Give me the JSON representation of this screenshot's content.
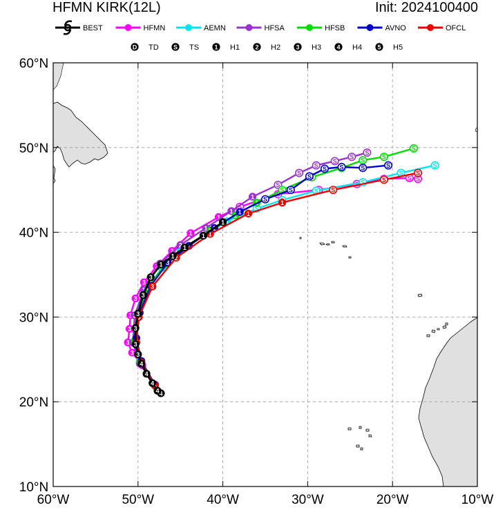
{
  "header": {
    "title_left": "HFMN KIRK(12L)",
    "title_right": "Init: 2024100400"
  },
  "colors": {
    "BEST": "#000000",
    "HFMN": "#ff00ff",
    "AEMN": "#00e5ee",
    "HFSA": "#9a32cd",
    "HFSB": "#00dd00",
    "AVNO": "#0000cd",
    "OFCL": "#ee0000",
    "land": "#e0e0e0",
    "grid": "#999999"
  },
  "legend": {
    "models": [
      {
        "name": "BEST",
        "icon": "hurricane-symbol-icon"
      },
      {
        "name": "HFMN",
        "icon": "line-dot-icon"
      },
      {
        "name": "AEMN",
        "icon": "line-dot-icon"
      },
      {
        "name": "HFSA",
        "icon": "line-dot-icon"
      },
      {
        "name": "HFSB",
        "icon": "line-dot-icon"
      },
      {
        "name": "AVNO",
        "icon": "line-dot-icon"
      },
      {
        "name": "OFCL",
        "icon": "line-dot-icon"
      }
    ],
    "intensity": [
      {
        "symbol": "D",
        "label": "TD"
      },
      {
        "symbol": "S",
        "label": "TS"
      },
      {
        "symbol": "1",
        "label": "H1"
      },
      {
        "symbol": "2",
        "label": "H2"
      },
      {
        "symbol": "3",
        "label": "H3"
      },
      {
        "symbol": "4",
        "label": "H4"
      },
      {
        "symbol": "5",
        "label": "H5"
      }
    ]
  },
  "chart_data": {
    "type": "line",
    "map_projection": "equirectangular",
    "xlim": [
      -60,
      -10
    ],
    "ylim": [
      10,
      60
    ],
    "xticks": [
      -60,
      -50,
      -40,
      -30,
      -20,
      -10
    ],
    "yticks": [
      10,
      20,
      30,
      40,
      50,
      60
    ],
    "xtick_labels": [
      "60°W",
      "50°W",
      "40°W",
      "30°W",
      "20°W",
      "10°W"
    ],
    "ytick_labels": [
      "10°N",
      "20°N",
      "30°N",
      "40°N",
      "50°N",
      "60°N"
    ],
    "grid": true,
    "legend_position": "top",
    "series": [
      {
        "name": "BEST",
        "points": [
          {
            "lon": -47.3,
            "lat": 21.0,
            "s": "4"
          },
          {
            "lon": -47.7,
            "lat": 21.3,
            "s": "4"
          },
          {
            "lon": -48.3,
            "lat": 22.2,
            "s": "4"
          },
          {
            "lon": -49.0,
            "lat": 23.3,
            "s": "4"
          },
          {
            "lon": -49.6,
            "lat": 24.5,
            "s": "4"
          },
          {
            "lon": -50.0,
            "lat": 25.6,
            "s": "3"
          },
          {
            "lon": -50.3,
            "lat": 26.8,
            "s": "3"
          },
          {
            "lon": -50.3,
            "lat": 28.7,
            "s": "3"
          },
          {
            "lon": -50.0,
            "lat": 30.4,
            "s": "3"
          },
          {
            "lon": -49.4,
            "lat": 32.6,
            "s": "3"
          },
          {
            "lon": -48.5,
            "lat": 34.7,
            "s": "3"
          },
          {
            "lon": -47.3,
            "lat": 36.2,
            "s": "1"
          },
          {
            "lon": -45.9,
            "lat": 37.2,
            "s": "1"
          },
          {
            "lon": -44.5,
            "lat": 38.2,
            "s": "1"
          },
          {
            "lon": -42.3,
            "lat": 39.6,
            "s": "1"
          },
          {
            "lon": -40.0,
            "lat": 41.2,
            "s": "1"
          }
        ]
      },
      {
        "name": "HFMN",
        "points": [
          {
            "lon": -48.0,
            "lat": 22.0,
            "s": "4"
          },
          {
            "lon": -49.5,
            "lat": 24.3,
            "s": "4"
          },
          {
            "lon": -50.7,
            "lat": 25.8,
            "s": "3"
          },
          {
            "lon": -51.2,
            "lat": 27.0,
            "s": "3"
          },
          {
            "lon": -51.0,
            "lat": 28.6,
            "s": "3"
          },
          {
            "lon": -50.9,
            "lat": 30.2,
            "s": "3"
          },
          {
            "lon": -50.3,
            "lat": 32.2,
            "s": "3"
          },
          {
            "lon": -49.3,
            "lat": 34.1,
            "s": "3"
          },
          {
            "lon": -47.8,
            "lat": 36.0,
            "s": "3"
          },
          {
            "lon": -46.0,
            "lat": 37.8,
            "s": "2"
          },
          {
            "lon": -43.8,
            "lat": 39.9,
            "s": "1"
          },
          {
            "lon": -40.5,
            "lat": 41.8,
            "s": "1"
          },
          {
            "lon": -38.0,
            "lat": 43.0,
            "s": "S"
          },
          {
            "lon": -33.5,
            "lat": 44.5,
            "s": "S"
          },
          {
            "lon": -28.7,
            "lat": 45.0,
            "s": "S"
          },
          {
            "lon": -24.2,
            "lat": 45.7,
            "s": "S"
          },
          {
            "lon": -21.0,
            "lat": 46.3,
            "s": "S"
          },
          {
            "lon": -18.0,
            "lat": 46.4,
            "s": "S"
          },
          {
            "lon": -17.0,
            "lat": 46.3,
            "s": "S"
          }
        ]
      },
      {
        "name": "AEMN",
        "points": [
          {
            "lon": -48.0,
            "lat": 22.0,
            "s": "4"
          },
          {
            "lon": -49.8,
            "lat": 24.8,
            "s": "4"
          },
          {
            "lon": -50.5,
            "lat": 27.0,
            "s": "3"
          },
          {
            "lon": -50.2,
            "lat": 30.2,
            "s": "3"
          },
          {
            "lon": -49.0,
            "lat": 33.2,
            "s": "3"
          },
          {
            "lon": -47.2,
            "lat": 35.8,
            "s": "3"
          },
          {
            "lon": -45.0,
            "lat": 37.9,
            "s": "2"
          },
          {
            "lon": -42.3,
            "lat": 39.6,
            "s": "1"
          },
          {
            "lon": -39.5,
            "lat": 41.3,
            "s": "1"
          },
          {
            "lon": -36.0,
            "lat": 42.8,
            "s": "S"
          },
          {
            "lon": -33.0,
            "lat": 43.8,
            "s": "S"
          },
          {
            "lon": -29.0,
            "lat": 44.9,
            "s": "S"
          },
          {
            "lon": -23.5,
            "lat": 45.9,
            "s": "S"
          },
          {
            "lon": -19.0,
            "lat": 47.0,
            "s": "S"
          },
          {
            "lon": -15.0,
            "lat": 47.9,
            "s": "S"
          }
        ]
      },
      {
        "name": "HFSA",
        "points": [
          {
            "lon": -48.0,
            "lat": 22.0,
            "s": "4"
          },
          {
            "lon": -49.8,
            "lat": 24.5,
            "s": "4"
          },
          {
            "lon": -50.6,
            "lat": 27.0,
            "s": "3"
          },
          {
            "lon": -50.4,
            "lat": 30.2,
            "s": "3"
          },
          {
            "lon": -49.3,
            "lat": 33.2,
            "s": "3"
          },
          {
            "lon": -47.4,
            "lat": 36.3,
            "s": "3"
          },
          {
            "lon": -45.0,
            "lat": 38.5,
            "s": "2"
          },
          {
            "lon": -42.0,
            "lat": 40.5,
            "s": "1"
          },
          {
            "lon": -39.0,
            "lat": 42.5,
            "s": "1"
          },
          {
            "lon": -36.5,
            "lat": 44.2,
            "s": "1"
          },
          {
            "lon": -33.5,
            "lat": 45.6,
            "s": "S"
          },
          {
            "lon": -31.0,
            "lat": 47.0,
            "s": "S"
          },
          {
            "lon": -29.0,
            "lat": 47.9,
            "s": "S"
          },
          {
            "lon": -26.8,
            "lat": 48.4,
            "s": "S"
          },
          {
            "lon": -24.8,
            "lat": 48.9,
            "s": "S"
          },
          {
            "lon": -23.0,
            "lat": 49.4,
            "s": "S"
          }
        ]
      },
      {
        "name": "HFSB",
        "points": [
          {
            "lon": -48.0,
            "lat": 22.0,
            "s": "4"
          },
          {
            "lon": -49.7,
            "lat": 24.7,
            "s": "4"
          },
          {
            "lon": -50.4,
            "lat": 27.2,
            "s": "3"
          },
          {
            "lon": -50.0,
            "lat": 30.3,
            "s": "3"
          },
          {
            "lon": -48.8,
            "lat": 33.5,
            "s": "3"
          },
          {
            "lon": -46.8,
            "lat": 36.2,
            "s": "3"
          },
          {
            "lon": -44.5,
            "lat": 38.2,
            "s": "2"
          },
          {
            "lon": -41.5,
            "lat": 40.2,
            "s": "1"
          },
          {
            "lon": -38.5,
            "lat": 42.0,
            "s": "1"
          },
          {
            "lon": -36.0,
            "lat": 43.5,
            "s": "1"
          },
          {
            "lon": -33.0,
            "lat": 45.0,
            "s": "S"
          },
          {
            "lon": -29.5,
            "lat": 46.5,
            "s": "S"
          },
          {
            "lon": -26.0,
            "lat": 47.6,
            "s": "S"
          },
          {
            "lon": -23.5,
            "lat": 48.5,
            "s": "S"
          },
          {
            "lon": -21.0,
            "lat": 48.9,
            "s": "S"
          },
          {
            "lon": -17.5,
            "lat": 49.9,
            "s": "S"
          }
        ]
      },
      {
        "name": "AVNO",
        "points": [
          {
            "lon": -48.0,
            "lat": 22.0,
            "s": "4"
          },
          {
            "lon": -49.6,
            "lat": 24.8,
            "s": "4"
          },
          {
            "lon": -50.2,
            "lat": 27.5,
            "s": "3"
          },
          {
            "lon": -49.8,
            "lat": 30.5,
            "s": "3"
          },
          {
            "lon": -48.5,
            "lat": 33.7,
            "s": "3"
          },
          {
            "lon": -46.5,
            "lat": 36.4,
            "s": "3"
          },
          {
            "lon": -44.0,
            "lat": 38.4,
            "s": "2"
          },
          {
            "lon": -41.0,
            "lat": 40.5,
            "s": "1"
          },
          {
            "lon": -38.0,
            "lat": 42.4,
            "s": "1"
          },
          {
            "lon": -35.0,
            "lat": 43.9,
            "s": "S"
          },
          {
            "lon": -32.0,
            "lat": 45.0,
            "s": "S"
          },
          {
            "lon": -29.8,
            "lat": 46.6,
            "s": "S"
          },
          {
            "lon": -28.0,
            "lat": 47.5,
            "s": "S"
          },
          {
            "lon": -26.0,
            "lat": 47.7,
            "s": "S"
          },
          {
            "lon": -23.5,
            "lat": 47.6,
            "s": "S"
          },
          {
            "lon": -20.5,
            "lat": 47.9,
            "s": "S"
          }
        ]
      },
      {
        "name": "OFCL",
        "points": [
          {
            "lon": -48.0,
            "lat": 21.9,
            "s": "4"
          },
          {
            "lon": -49.6,
            "lat": 24.6,
            "s": "4"
          },
          {
            "lon": -50.2,
            "lat": 27.0,
            "s": "3"
          },
          {
            "lon": -49.9,
            "lat": 30.0,
            "s": "3"
          },
          {
            "lon": -48.3,
            "lat": 33.6,
            "s": "3"
          },
          {
            "lon": -45.5,
            "lat": 37.0,
            "s": "2"
          },
          {
            "lon": -41.5,
            "lat": 39.8,
            "s": "1"
          },
          {
            "lon": -37.0,
            "lat": 42.2,
            "s": "1"
          },
          {
            "lon": -33.0,
            "lat": 43.5,
            "s": "1"
          },
          {
            "lon": -27.0,
            "lat": 45.0,
            "s": "S"
          },
          {
            "lon": -21.0,
            "lat": 46.2,
            "s": "S"
          },
          {
            "lon": -17.0,
            "lat": 47.0,
            "s": "S"
          }
        ]
      }
    ]
  }
}
